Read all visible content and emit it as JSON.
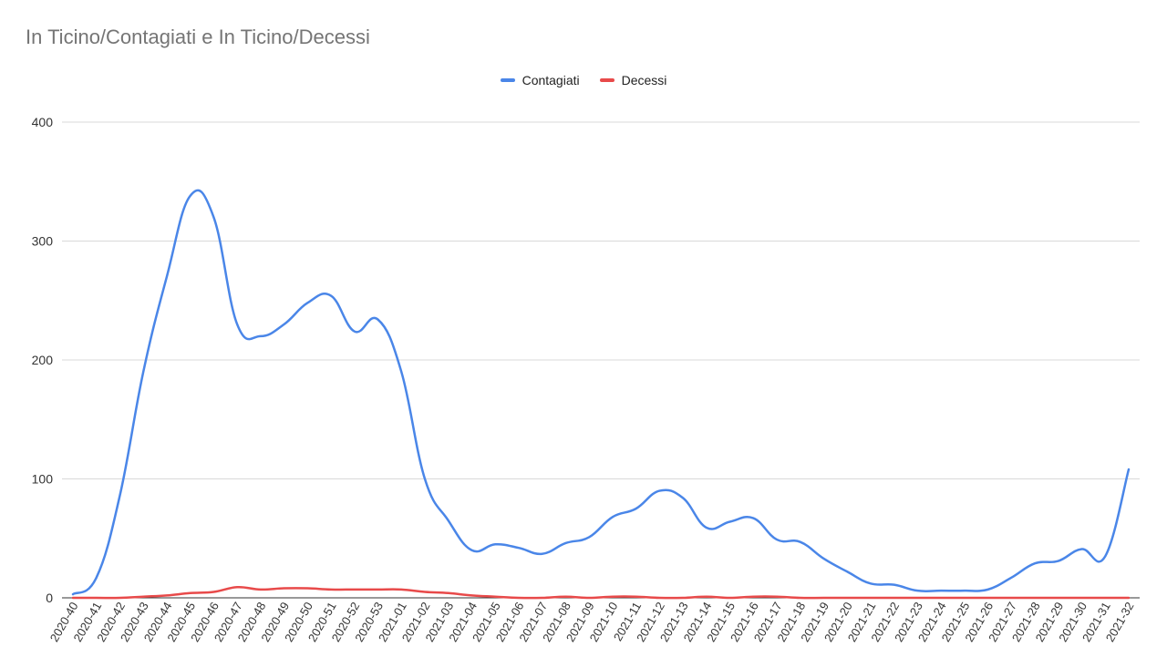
{
  "chart_data": {
    "type": "line",
    "title": "In Ticino/Contagiati e In Ticino/Decessi",
    "xlabel": "",
    "ylabel": "",
    "ylim": [
      0,
      400
    ],
    "yticks": [
      "0",
      "100",
      "200",
      "300",
      "400"
    ],
    "grid": true,
    "legend_position": "top-center",
    "categories": [
      "2020-40",
      "2020-41",
      "2020-42",
      "2020-43",
      "2020-44",
      "2020-45",
      "2020-46",
      "2020-47",
      "2020-48",
      "2020-49",
      "2020-50",
      "2020-51",
      "2020-52",
      "2020-53",
      "2021-01",
      "2021-02",
      "2021-03",
      "2021-04",
      "2021-05",
      "2021-06",
      "2021-07",
      "2021-08",
      "2021-09",
      "2021-10",
      "2021-11",
      "2021-12",
      "2021-13",
      "2021-14",
      "2021-15",
      "2021-16",
      "2021-17",
      "2021-18",
      "2021-19",
      "2021-20",
      "2021-21",
      "2021-22",
      "2021-23",
      "2021-24",
      "2021-25",
      "2021-26",
      "2021-27",
      "2021-28",
      "2021-29",
      "2021-30",
      "2021-31",
      "2021-32"
    ],
    "series": [
      {
        "name": "Contagiati",
        "color": "#4a86e8",
        "values": [
          3,
          17,
          86,
          190,
          270,
          338,
          320,
          230,
          220,
          230,
          248,
          254,
          224,
          234,
          190,
          100,
          65,
          40,
          45,
          42,
          37,
          46,
          51,
          68,
          75,
          90,
          84,
          59,
          64,
          67,
          49,
          47,
          33,
          22,
          12,
          11,
          6,
          6,
          6,
          7,
          17,
          29,
          31,
          41,
          35,
          108
        ]
      },
      {
        "name": "Decessi",
        "color": "#e84a4a",
        "values": [
          0,
          0,
          0,
          1,
          2,
          4,
          5,
          9,
          7,
          8,
          8,
          7,
          7,
          7,
          7,
          5,
          4,
          2,
          1,
          0,
          0,
          1,
          0,
          1,
          1,
          0,
          0,
          1,
          0,
          1,
          1,
          0,
          0,
          0,
          0,
          0,
          0,
          0,
          0,
          0,
          0,
          0,
          0,
          0,
          0,
          0
        ]
      }
    ]
  }
}
